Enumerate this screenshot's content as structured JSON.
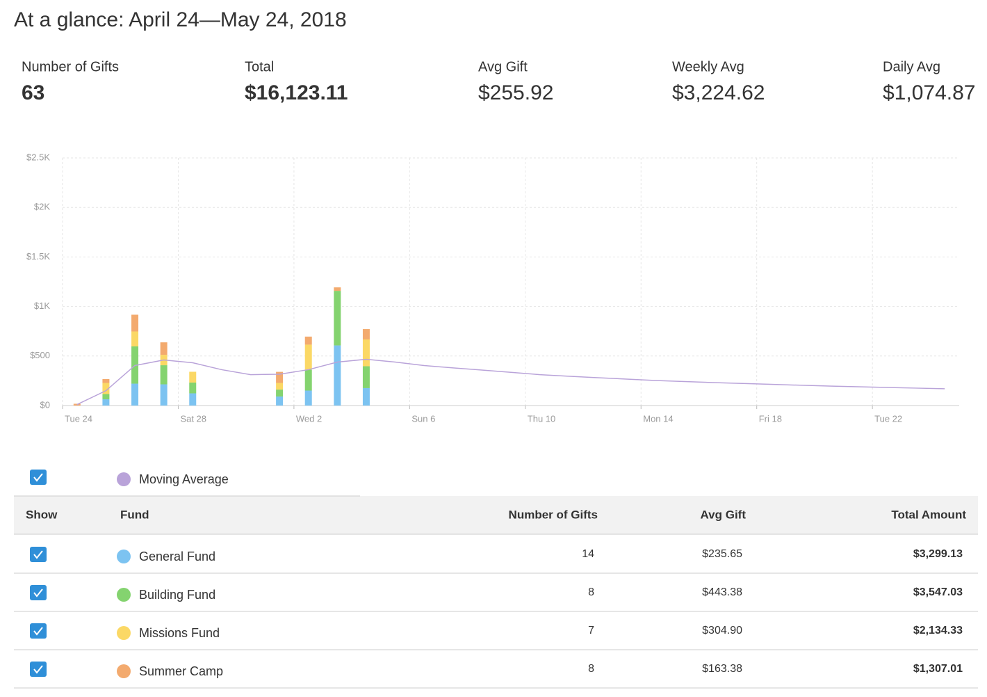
{
  "header": {
    "title": "At a glance: April 24—May 24, 2018"
  },
  "stats": [
    {
      "label": "Number of Gifts",
      "value": 63
    },
    {
      "label": "Total",
      "value": "$16,123.11"
    },
    {
      "label": "Avg Gift",
      "value": "$255.92"
    },
    {
      "label": "Weekly Avg",
      "value": "$3,224.62"
    },
    {
      "label": "Daily Avg",
      "value": "$1,074.87"
    }
  ],
  "chart_data": {
    "type": "bar",
    "stacked": true,
    "grid": true,
    "categories": [
      null,
      null,
      null,
      null,
      null,
      null,
      null,
      null,
      null,
      null,
      null,
      null,
      null,
      null,
      null,
      null,
      null,
      null,
      null,
      null,
      null,
      null,
      null,
      null,
      null,
      null,
      null,
      null,
      null,
      null,
      null
    ],
    "xticks": [
      {
        "value": 0,
        "label": "Tue 24"
      },
      {
        "value": 4,
        "label": "Sat 28"
      },
      {
        "value": 8,
        "label": "Wed 2"
      },
      {
        "value": 12,
        "label": "Sun 6"
      },
      {
        "value": 16,
        "label": "Thu 10"
      },
      {
        "value": 20,
        "label": "Mon 14"
      },
      {
        "value": 24,
        "label": "Fri 18"
      },
      {
        "value": 28,
        "label": "Tue 22"
      }
    ],
    "ylim": [
      0,
      2500
    ],
    "yticks": [
      {
        "value": 0,
        "label": "$0"
      },
      {
        "value": 500,
        "label": "$500"
      },
      {
        "value": 1000,
        "label": "$1K"
      },
      {
        "value": 1500,
        "label": "$1.5K"
      },
      {
        "value": 2000,
        "label": "$2K"
      },
      {
        "value": 2500,
        "label": "$2.5K"
      }
    ],
    "series": [
      {
        "name": "General Fund",
        "color": "#7cc3f1",
        "values": [
          0,
          63,
          221,
          214,
          123,
          0,
          0,
          91,
          151,
          607,
          176,
          0,
          0,
          0,
          0,
          0,
          0,
          0,
          0,
          0,
          0,
          0,
          0,
          0,
          0,
          0,
          0,
          0,
          0,
          0,
          0
        ]
      },
      {
        "name": "Building Fund",
        "color": "#84d36f",
        "values": [
          0,
          53,
          376,
          193,
          109,
          0,
          0,
          70,
          211,
          551,
          221,
          0,
          0,
          0,
          0,
          0,
          0,
          0,
          0,
          0,
          0,
          0,
          0,
          0,
          0,
          0,
          0,
          0,
          0,
          0,
          0
        ]
      },
      {
        "name": "Missions Fund",
        "color": "#fbd865",
        "values": [
          0,
          112,
          151,
          105,
          109,
          0,
          0,
          67,
          253,
          0,
          270,
          0,
          0,
          0,
          0,
          0,
          0,
          0,
          0,
          0,
          0,
          0,
          0,
          0,
          0,
          0,
          0,
          0,
          0,
          0,
          0
        ]
      },
      {
        "name": "Summer Camp",
        "color": "#f3aa6e",
        "values": [
          18,
          39,
          169,
          126,
          0,
          0,
          0,
          112,
          81,
          35,
          105,
          0,
          0,
          0,
          0,
          0,
          0,
          0,
          0,
          0,
          0,
          0,
          0,
          0,
          0,
          0,
          0,
          0,
          0,
          0,
          0
        ]
      },
      {
        "name": "Moving Average",
        "type": "line",
        "color": "#b9a3d9",
        "values": [
          10,
          150,
          404,
          460,
          432,
          362,
          312,
          316,
          362,
          439,
          467,
          439,
          404,
          380,
          358,
          335,
          312,
          296,
          281,
          267,
          253,
          242,
          232,
          223,
          214,
          205,
          197,
          190,
          183,
          176,
          169
        ]
      }
    ]
  },
  "table": {
    "columns": [
      "Show",
      "Fund",
      "Number of Gifts",
      "Avg Gift",
      "Total Amount"
    ],
    "rows": [
      [
        14,
        "$235.65",
        "$3,299.13"
      ],
      [
        8,
        "$443.38",
        "$3,547.03"
      ],
      [
        7,
        "$304.90",
        "$2,134.33"
      ],
      [
        8,
        "$163.38",
        "$1,307.01"
      ]
    ]
  }
}
